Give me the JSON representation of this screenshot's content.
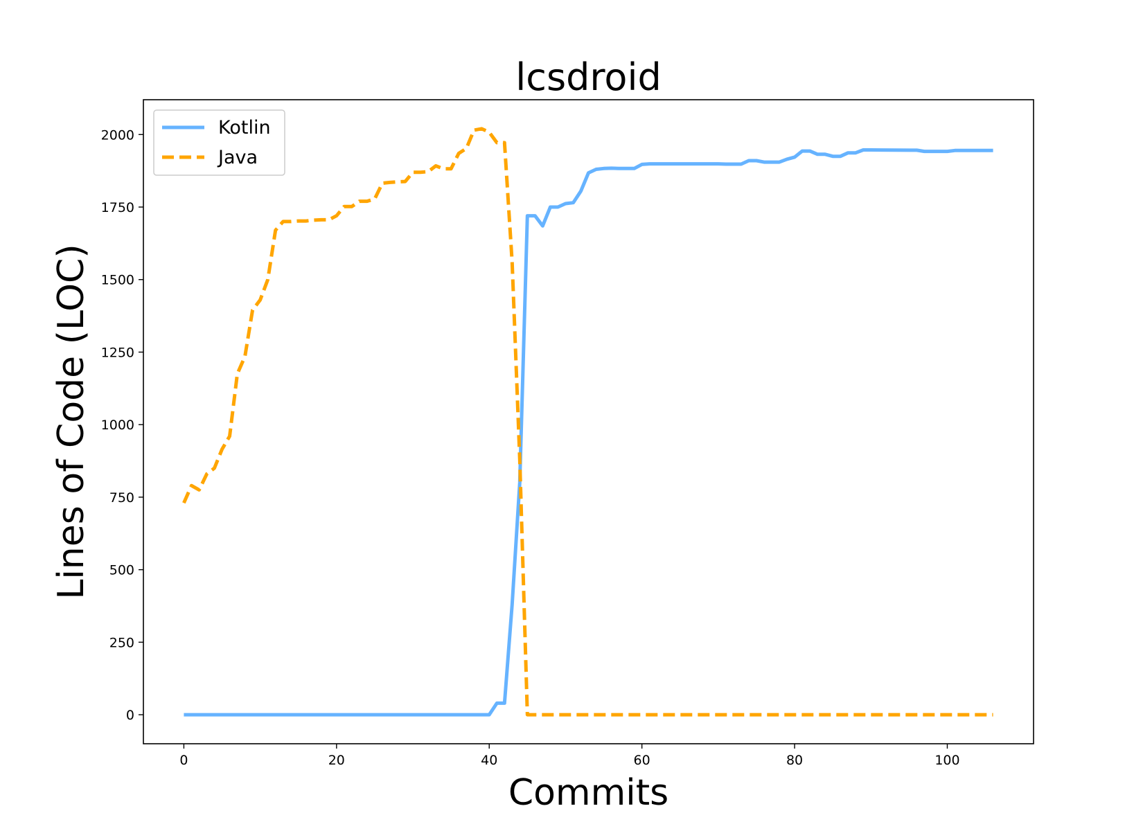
{
  "chart_data": {
    "type": "line",
    "title": "lcsdroid",
    "xlabel": "Commits",
    "ylabel": "Lines of Code (LOC)",
    "xlim": [
      -5.3,
      111.3
    ],
    "ylim": [
      -100,
      2120
    ],
    "xticks": [
      0,
      20,
      40,
      60,
      80,
      100
    ],
    "yticks": [
      0,
      250,
      500,
      750,
      1000,
      1250,
      1500,
      1750,
      2000
    ],
    "grid": false,
    "legend_position": "top-left",
    "series": [
      {
        "name": "Kotlin",
        "color": "#66b3ff",
        "dash": "solid",
        "points": [
          [
            0,
            0
          ],
          [
            40,
            0
          ],
          [
            41,
            40
          ],
          [
            42,
            40
          ],
          [
            43,
            380
          ],
          [
            44,
            800
          ],
          [
            45,
            1720
          ],
          [
            46,
            1720
          ],
          [
            47,
            1685
          ],
          [
            48,
            1750
          ],
          [
            49,
            1750
          ],
          [
            50,
            1762
          ],
          [
            51,
            1765
          ],
          [
            52,
            1805
          ],
          [
            53,
            1868
          ],
          [
            54,
            1880
          ],
          [
            55,
            1883
          ],
          [
            56,
            1884
          ],
          [
            57,
            1883
          ],
          [
            58,
            1883
          ],
          [
            59,
            1883
          ],
          [
            60,
            1897
          ],
          [
            61,
            1899
          ],
          [
            62,
            1899
          ],
          [
            65,
            1899
          ],
          [
            70,
            1899
          ],
          [
            71,
            1898
          ],
          [
            73,
            1898
          ],
          [
            74,
            1910
          ],
          [
            75,
            1910
          ],
          [
            76,
            1905
          ],
          [
            78,
            1905
          ],
          [
            79,
            1915
          ],
          [
            80,
            1922
          ],
          [
            81,
            1943
          ],
          [
            82,
            1943
          ],
          [
            83,
            1932
          ],
          [
            84,
            1932
          ],
          [
            85,
            1925
          ],
          [
            86,
            1925
          ],
          [
            87,
            1937
          ],
          [
            88,
            1937
          ],
          [
            89,
            1947
          ],
          [
            90,
            1947
          ],
          [
            95,
            1946
          ],
          [
            96,
            1946
          ],
          [
            97,
            1942
          ],
          [
            100,
            1942
          ],
          [
            101,
            1945
          ],
          [
            106,
            1945
          ]
        ]
      },
      {
        "name": "Java",
        "color": "#ffa500",
        "dash": "dashed",
        "points": [
          [
            0,
            730
          ],
          [
            1,
            790
          ],
          [
            2,
            775
          ],
          [
            3,
            830
          ],
          [
            4,
            850
          ],
          [
            5,
            915
          ],
          [
            6,
            960
          ],
          [
            7,
            1175
          ],
          [
            8,
            1235
          ],
          [
            9,
            1395
          ],
          [
            10,
            1430
          ],
          [
            11,
            1500
          ],
          [
            12,
            1670
          ],
          [
            13,
            1700
          ],
          [
            14,
            1700
          ],
          [
            15,
            1702
          ],
          [
            16,
            1702
          ],
          [
            17,
            1705
          ],
          [
            18,
            1706
          ],
          [
            19,
            1706
          ],
          [
            20,
            1720
          ],
          [
            21,
            1752
          ],
          [
            22,
            1752
          ],
          [
            23,
            1770
          ],
          [
            24,
            1770
          ],
          [
            25,
            1778
          ],
          [
            26,
            1832
          ],
          [
            27,
            1835
          ],
          [
            28,
            1837
          ],
          [
            29,
            1838
          ],
          [
            30,
            1870
          ],
          [
            31,
            1870
          ],
          [
            32,
            1872
          ],
          [
            33,
            1892
          ],
          [
            34,
            1882
          ],
          [
            35,
            1882
          ],
          [
            36,
            1935
          ],
          [
            37,
            1952
          ],
          [
            38,
            2015
          ],
          [
            39,
            2020
          ],
          [
            40,
            2008
          ],
          [
            41,
            1972
          ],
          [
            42,
            1972
          ],
          [
            43,
            1560
          ],
          [
            44,
            880
          ],
          [
            45,
            0
          ],
          [
            46,
            0
          ],
          [
            106,
            0
          ]
        ]
      }
    ]
  }
}
